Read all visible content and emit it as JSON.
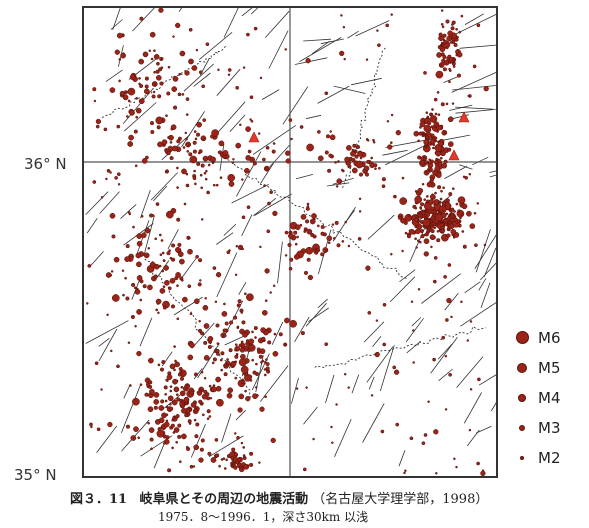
{
  "map": {
    "lat_labels": {
      "north": "36° N",
      "south": "35° N"
    },
    "marker_color": "#9b2418",
    "volcano_color": "#e23a2a"
  },
  "legend": {
    "items": [
      {
        "label": "M6",
        "magnitude": 6
      },
      {
        "label": "M5",
        "magnitude": 5
      },
      {
        "label": "M4",
        "magnitude": 4
      },
      {
        "label": "M3",
        "magnitude": 3
      },
      {
        "label": "M2",
        "magnitude": 2
      }
    ]
  },
  "caption": {
    "figure_number": "図３．11",
    "title": "岐阜県とその周辺の地震活動",
    "source": "（名古屋大学理学部，1998）",
    "period": "1975．8～1996．1，深さ30km 以浅"
  }
}
